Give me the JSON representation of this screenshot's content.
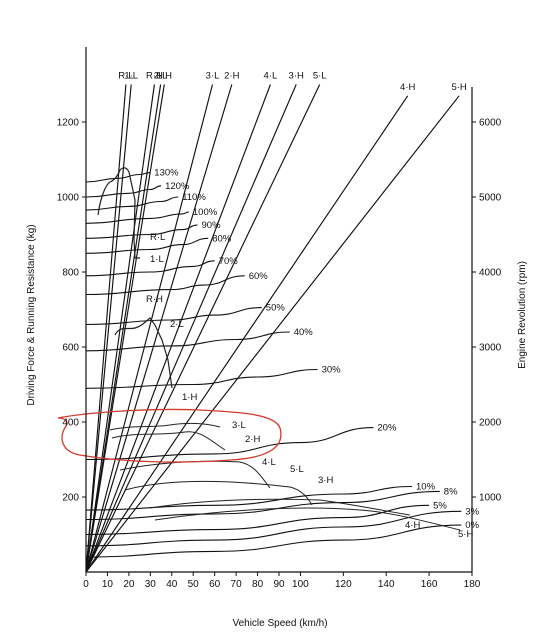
{
  "chart_data": {
    "type": "line",
    "xlabel": "Vehicle Speed (km/h)",
    "ylabel": "Driving Force & Running Resistance (kg)",
    "y2label": "Engine Revolution (rpm)",
    "xlim": [
      0,
      180
    ],
    "ylim": [
      0,
      1400
    ],
    "y2lim": [
      0,
      7000
    ],
    "x_ticks": [
      0,
      10,
      20,
      30,
      40,
      50,
      60,
      70,
      80,
      90,
      100,
      120,
      140,
      160,
      180
    ],
    "y_ticks": [
      200,
      400,
      600,
      800,
      1000,
      1200
    ],
    "y2_ticks": [
      1000,
      2000,
      3000,
      4000,
      5000,
      6000
    ],
    "grid": false,
    "legend": "none",
    "gear_lines": [
      {
        "name": "R·L",
        "x": [
          0,
          18.6
        ],
        "y": [
          0,
          1300
        ]
      },
      {
        "name": "1·L",
        "x": [
          0,
          21.1
        ],
        "y": [
          0,
          1300
        ]
      },
      {
        "name": "2·L",
        "x": [
          0,
          34.8
        ],
        "y": [
          0,
          1300
        ]
      },
      {
        "name": "R·H",
        "x": [
          0,
          31.9
        ],
        "y": [
          0,
          1300
        ]
      },
      {
        "name": "1·H",
        "x": [
          0,
          36.5
        ],
        "y": [
          0,
          1300
        ]
      },
      {
        "name": "3·L",
        "x": [
          0,
          59
        ],
        "y": [
          0,
          1300
        ]
      },
      {
        "name": "2·H",
        "x": [
          0,
          68
        ],
        "y": [
          0,
          1300
        ]
      },
      {
        "name": "4·L",
        "x": [
          0,
          86
        ],
        "y": [
          0,
          1300
        ]
      },
      {
        "name": "3·H",
        "x": [
          0,
          98
        ],
        "y": [
          0,
          1300
        ]
      },
      {
        "name": "5·L",
        "x": [
          0,
          109
        ],
        "y": [
          0,
          1300
        ]
      },
      {
        "name": "4·H",
        "x": [
          0,
          150
        ],
        "y": [
          0,
          1270
        ]
      },
      {
        "name": "5·H",
        "x": [
          0,
          174
        ],
        "y": [
          0,
          1270
        ]
      }
    ],
    "resistance_curves": [
      {
        "name": "0%",
        "x": [
          0,
          60,
          120,
          175
        ],
        "y": [
          40,
          55,
          85,
          125
        ]
      },
      {
        "name": "3%",
        "x": [
          0,
          60,
          120,
          175
        ],
        "y": [
          70,
          85,
          120,
          162
        ]
      },
      {
        "name": "5%",
        "x": [
          0,
          60,
          120,
          160
        ],
        "y": [
          100,
          113,
          145,
          178
        ]
      },
      {
        "name": "8%",
        "x": [
          0,
          60,
          120,
          165
        ],
        "y": [
          140,
          155,
          185,
          215
        ]
      },
      {
        "name": "10%",
        "x": [
          0,
          60,
          120,
          152
        ],
        "y": [
          165,
          178,
          208,
          228
        ]
      },
      {
        "name": "20%",
        "x": [
          0,
          60,
          100,
          134
        ],
        "y": [
          300,
          315,
          345,
          385
        ]
      },
      {
        "name": "30%",
        "x": [
          0,
          50,
          80,
          108
        ],
        "y": [
          490,
          500,
          520,
          540
        ]
      },
      {
        "name": "40%",
        "x": [
          0,
          40,
          70,
          95
        ],
        "y": [
          590,
          603,
          620,
          640
        ]
      },
      {
        "name": "50%",
        "x": [
          0,
          40,
          60,
          82
        ],
        "y": [
          660,
          672,
          685,
          705
        ]
      },
      {
        "name": "60%",
        "x": [
          0,
          40,
          55,
          74
        ],
        "y": [
          740,
          753,
          765,
          790
        ]
      },
      {
        "name": "70%",
        "x": [
          0,
          30,
          50,
          60
        ],
        "y": [
          790,
          800,
          815,
          830
        ]
      },
      {
        "name": "80%",
        "x": [
          0,
          30,
          45,
          57
        ],
        "y": [
          850,
          860,
          873,
          890
        ]
      },
      {
        "name": "90%",
        "x": [
          0,
          30,
          45,
          52
        ],
        "y": [
          890,
          900,
          913,
          925
        ]
      },
      {
        "name": "100%",
        "x": [
          0,
          30,
          45,
          48
        ],
        "y": [
          930,
          943,
          955,
          960
        ]
      },
      {
        "name": "110%",
        "x": [
          0,
          20,
          35,
          43
        ],
        "y": [
          965,
          975,
          988,
          1000
        ]
      },
      {
        "name": "120%",
        "x": [
          0,
          20,
          30,
          35
        ],
        "y": [
          1000,
          1010,
          1020,
          1030
        ]
      },
      {
        "name": "130%",
        "x": [
          0,
          15,
          25,
          30
        ],
        "y": [
          1040,
          1050,
          1060,
          1065
        ]
      }
    ],
    "annotations": [
      "R·L",
      "1·L",
      "R·H",
      "2·L",
      "1·H",
      "3·L",
      "2·H",
      "4·L",
      "5·L",
      "3·H",
      "4·H",
      "5·H"
    ]
  }
}
